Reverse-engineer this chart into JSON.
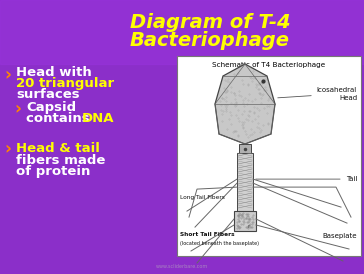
{
  "title_line1": "Diagram of T-4",
  "title_line2": "Bacteriophage",
  "title_color": "#FFFF00",
  "bg_color": "#8B2FC9",
  "bullet_color_white": "#FFFFFF",
  "bullet_color_yellow": "#FFFF00",
  "schematic_title": "Schematic of T4 Bacteriophage",
  "box_bg": "#FFFFFF",
  "box_border": "#999999",
  "watermark": "www.scliderbare.com",
  "title_fontsize": 14,
  "bullet_fontsize": 9.5
}
